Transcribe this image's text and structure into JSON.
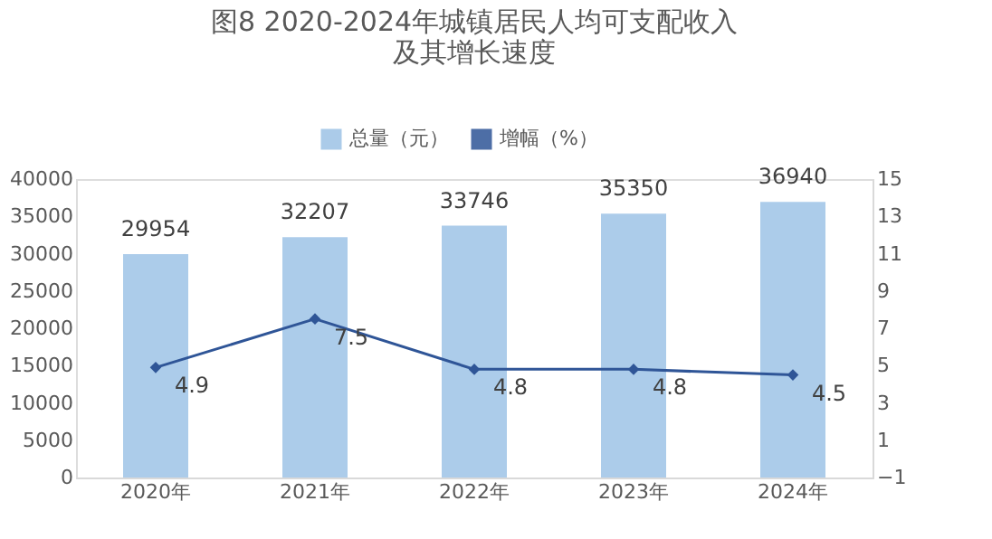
{
  "chart_data": {
    "type": "bar",
    "title": "图8 2020-2024年城镇居民人均可支配收入及其增长速度",
    "categories": [
      "2020年",
      "2021年",
      "2022年",
      "2023年",
      "2024年"
    ],
    "series": [
      {
        "name": "总量（元）",
        "color": "#9dc3e6",
        "values": [
          29954,
          32207,
          33746,
          35350,
          36940
        ]
      },
      {
        "name": "增幅（%）",
        "type": "line",
        "axis": "y2",
        "color": "#2f5597",
        "marker": "diamond",
        "values": [
          4.9,
          7.5,
          4.8,
          4.8,
          4.5
        ]
      }
    ],
    "ylim": [
      0,
      40000
    ],
    "yticks": [
      0,
      5000,
      10000,
      15000,
      20000,
      25000,
      30000,
      35000,
      40000
    ],
    "y2lim": [
      -1,
      15
    ],
    "y2ticks": [
      -1,
      1,
      3,
      5,
      7,
      9,
      11,
      13,
      15
    ],
    "data_labels": true,
    "legend": "top",
    "grid": false
  }
}
